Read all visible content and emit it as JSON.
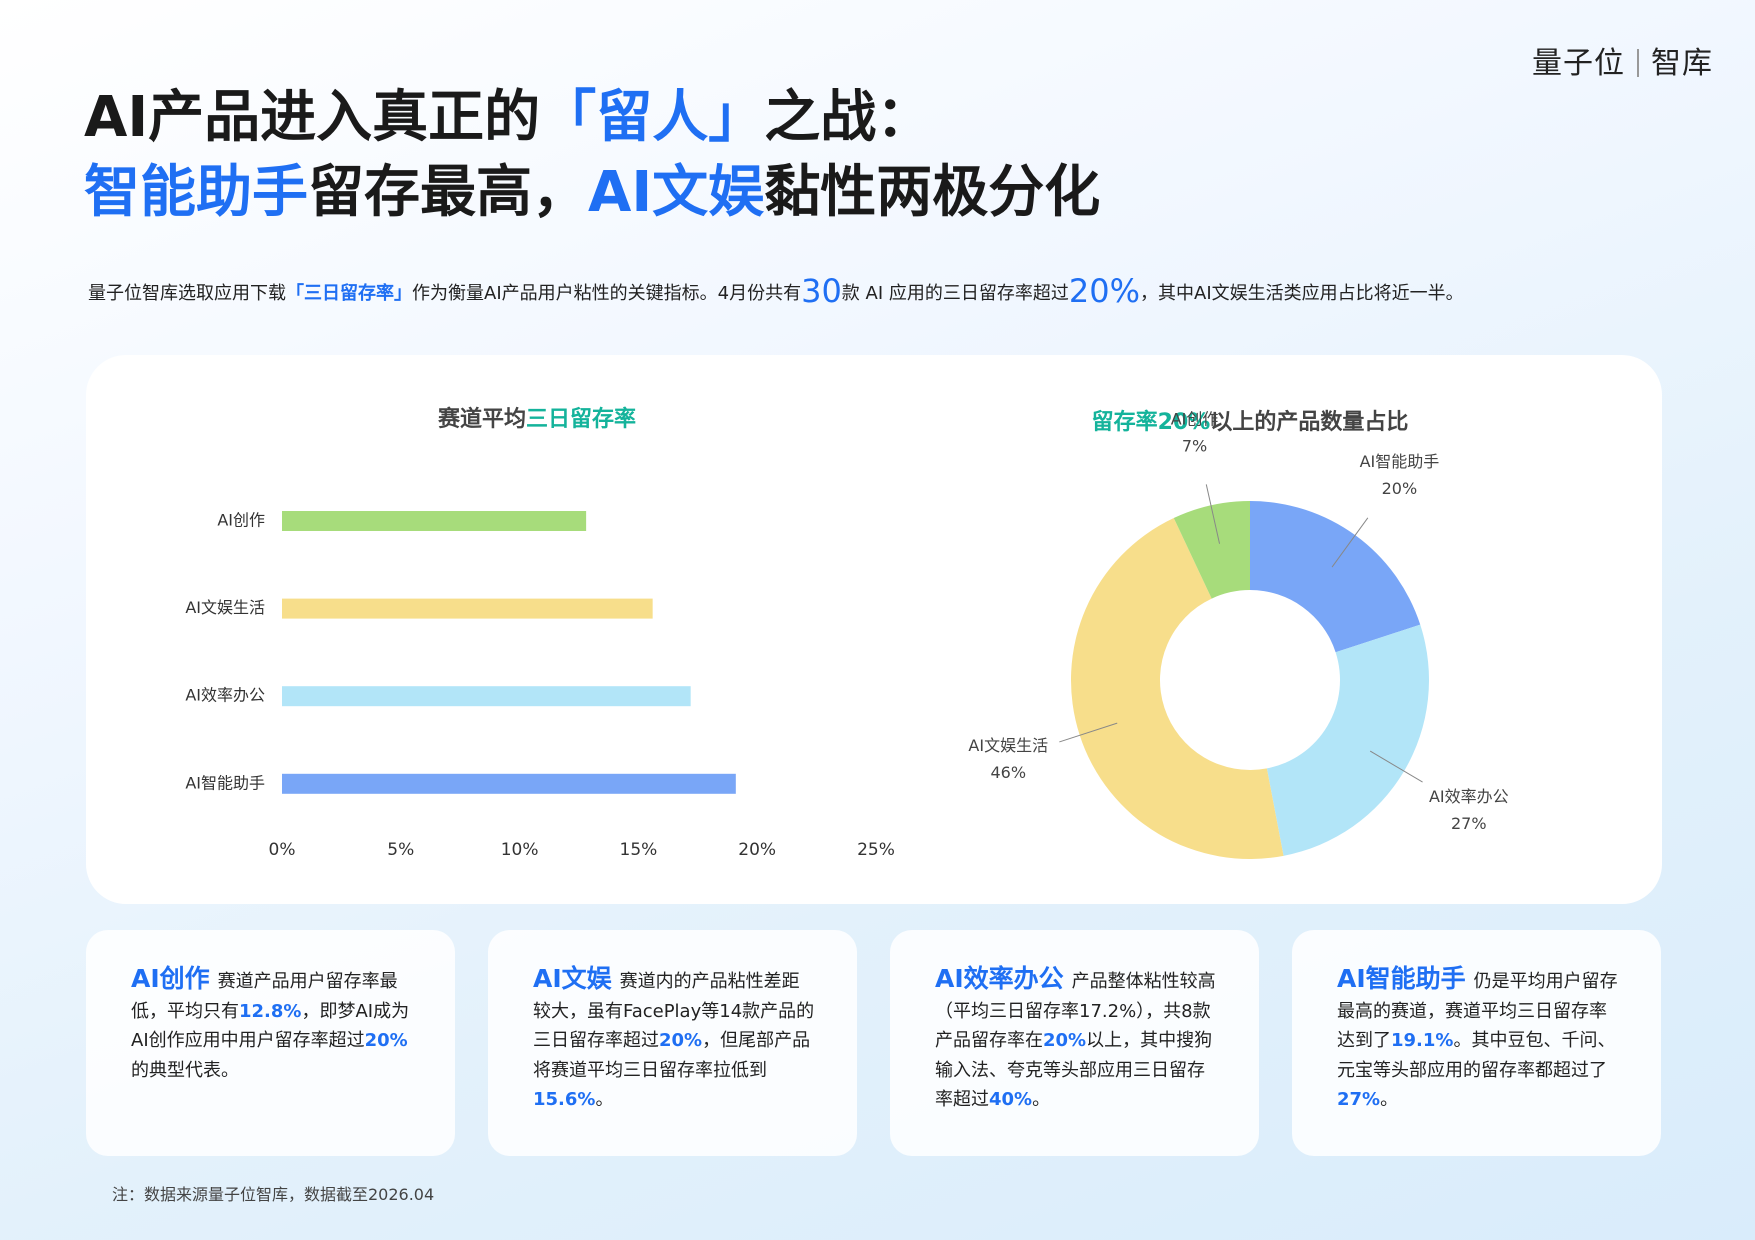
{
  "logo": {
    "brand": "量子位",
    "sub": "智库"
  },
  "headline": {
    "line1": [
      {
        "text": "AI产品进入真正的",
        "em": false
      },
      {
        "text": "「留人」",
        "em": true
      },
      {
        "text": "之战：",
        "em": false
      }
    ],
    "line2": [
      {
        "text": "智能助手",
        "em": true
      },
      {
        "text": "留存最高，",
        "em": false
      },
      {
        "text": "AI文娱",
        "em": true
      },
      {
        "text": "黏性两极分化",
        "em": false
      }
    ]
  },
  "intro": [
    {
      "text": "量子位智库选取应用下载",
      "em": false
    },
    {
      "text": "「三日留存率」",
      "em": true
    },
    {
      "text": "作为衡量AI产品用户粘性的关键指标。4月份共有",
      "em": false
    },
    {
      "text": "30",
      "em": true,
      "big": true
    },
    {
      "text": "款 AI 应用的三日留存率超过",
      "em": false
    },
    {
      "text": "20%",
      "em": true,
      "big": true
    },
    {
      "text": "，其中AI文娱生活类应用占比将近一半。",
      "em": false
    }
  ],
  "chart_data": [
    {
      "type": "bar",
      "orientation": "horizontal",
      "title": [
        {
          "text": "赛道平均",
          "em": false
        },
        {
          "text": "三日留存率",
          "em": true
        }
      ],
      "categories": [
        "AI创作",
        "AI文娱生活",
        "AI效率办公",
        "AI智能助手"
      ],
      "values": [
        12.8,
        15.6,
        17.2,
        19.1
      ],
      "colors": [
        "#a7dc7b",
        "#f7de8b",
        "#b2e5f8",
        "#79a6f7"
      ],
      "xlim": [
        0,
        25
      ],
      "xticks": [
        {
          "value": 0,
          "label": "0%"
        },
        {
          "value": 5,
          "label": "5%"
        },
        {
          "value": 10,
          "label": "10%"
        },
        {
          "value": 15,
          "label": "15%"
        },
        {
          "value": 20,
          "label": "20%"
        },
        {
          "value": 25,
          "label": "25%"
        }
      ],
      "grid": false
    },
    {
      "type": "donut",
      "title": [
        {
          "text": "留存率20%",
          "em": true
        },
        {
          "text": "以上的产品数量占比",
          "em": false
        }
      ],
      "categories": [
        "AI智能助手",
        "AI效率办公",
        "AI文娱生活",
        "AI创作"
      ],
      "values": [
        20,
        27,
        46,
        7
      ],
      "value_labels": [
        "20%",
        "27%",
        "46%",
        "7%"
      ],
      "colors": [
        "#79a6f7",
        "#b2e5f8",
        "#f7de8b",
        "#a7dc7b"
      ]
    }
  ],
  "cards": [
    {
      "title": "AI创作",
      "body": [
        {
          "text": "赛道产品用户留存率最低，平均只有",
          "em": false
        },
        {
          "text": "12.8%",
          "em": true
        },
        {
          "text": "，即梦AI成为AI创作应用中用户留存率超过",
          "em": false
        },
        {
          "text": "20%",
          "em": true
        },
        {
          "text": "的典型代表。",
          "em": false
        }
      ]
    },
    {
      "title": "AI文娱",
      "body": [
        {
          "text": "赛道内的产品粘性差距较大，虽有FacePlay等14款产品的三日留存率超过",
          "em": false
        },
        {
          "text": "20%",
          "em": true
        },
        {
          "text": "，但尾部产品将赛道平均三日留存率拉低到",
          "em": false
        },
        {
          "text": "15.6%",
          "em": true
        },
        {
          "text": "。",
          "em": false
        }
      ]
    },
    {
      "title": "AI效率办公",
      "body": [
        {
          "text": "产品整体粘性较高（平均三日留存率17.2%），共8款产品留存率在",
          "em": false
        },
        {
          "text": "20%",
          "em": true
        },
        {
          "text": "以上，其中搜狗输入法、夸克等头部应用三日留存率超过",
          "em": false
        },
        {
          "text": "40%",
          "em": true
        },
        {
          "text": "。",
          "em": false
        }
      ]
    },
    {
      "title": "AI智能助手",
      "body": [
        {
          "text": "仍是平均用户留存最高的赛道，赛道平均三日留存率达到了",
          "em": false
        },
        {
          "text": "19.1%",
          "em": true
        },
        {
          "text": "。其中豆包、千问、元宝等头部应用的留存率都超过了",
          "em": false
        },
        {
          "text": "27%",
          "em": true
        },
        {
          "text": "。",
          "em": false
        }
      ]
    }
  ],
  "note": "注：数据来源量子位智库，数据截至2026.04"
}
